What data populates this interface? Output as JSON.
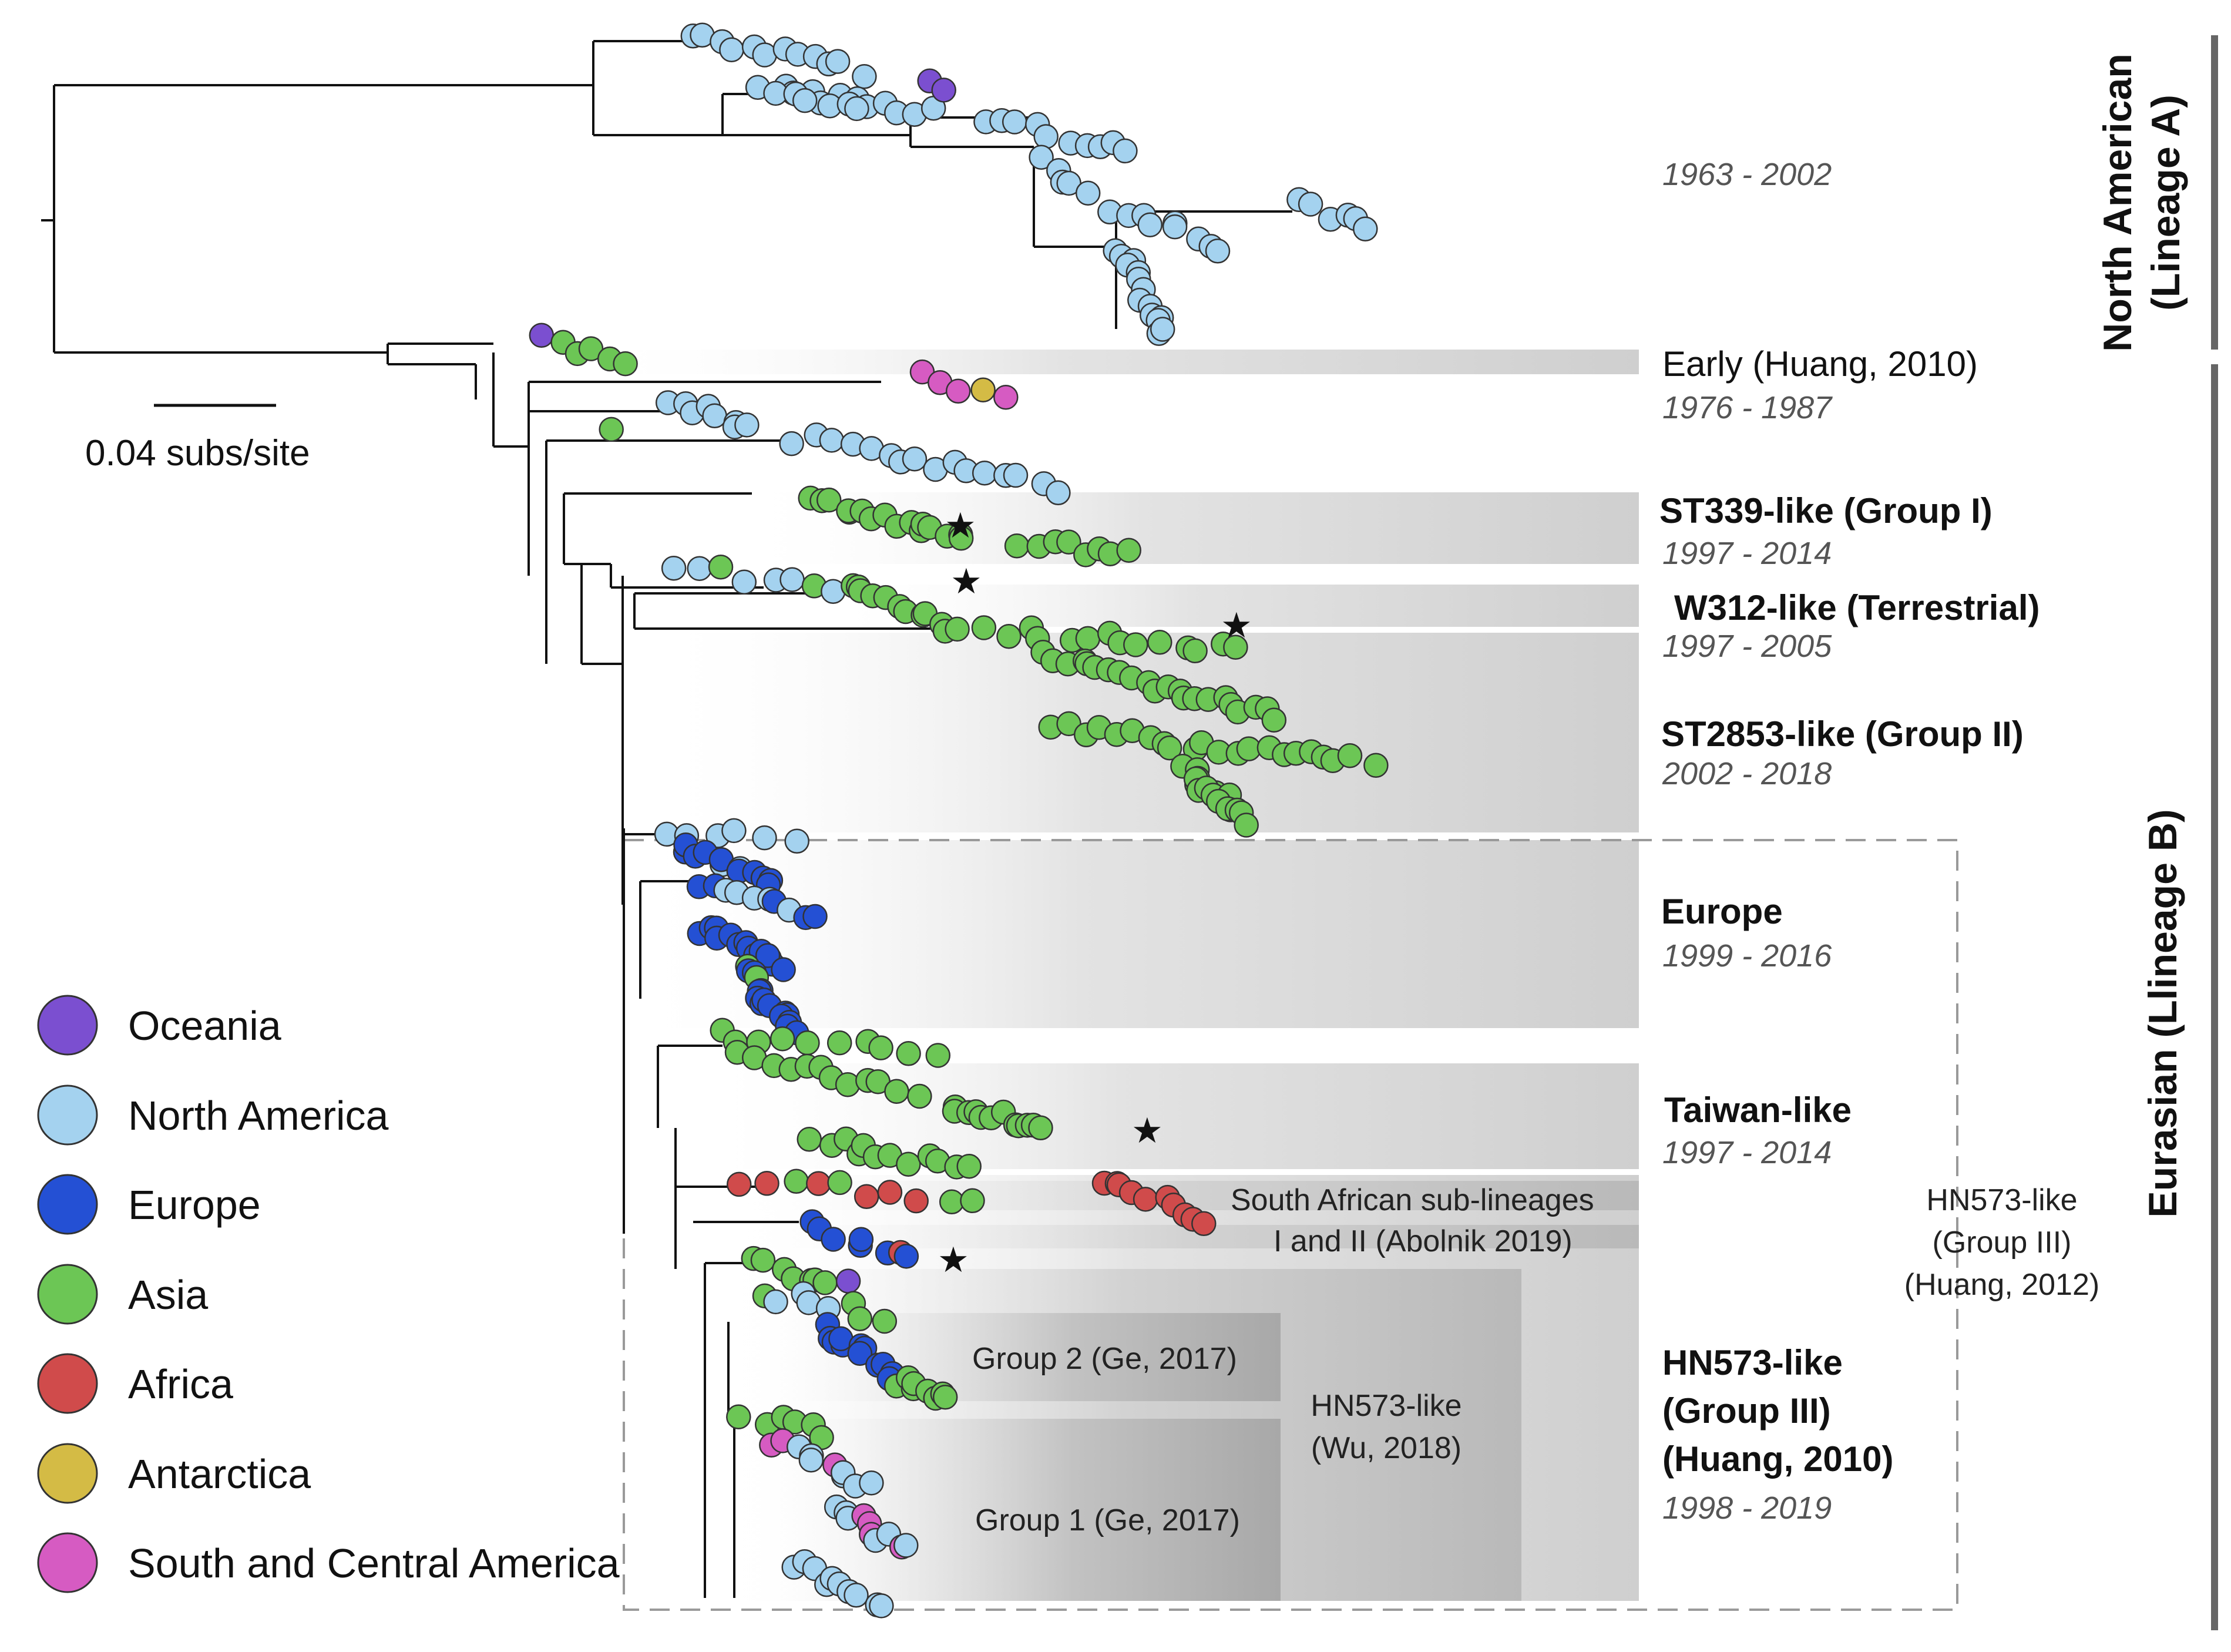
{
  "scale_bar": {
    "label": "0.04 subs/site"
  },
  "lineages": {
    "north_american_line1": "North American",
    "north_american_line2": "(Lineage A)",
    "eurasian": "Eurasian (Llineage B)"
  },
  "clades": {
    "north_american_years": "1963 - 2002",
    "early_title": "Early (Huang, 2010)",
    "early_years": "1976 - 1987",
    "st339_title": "ST339-like (Group I)",
    "st339_years": "1997 - 2014",
    "w312_title": "W312-like (Terrestrial)",
    "w312_years": "1997 - 2005",
    "st2853_title": "ST2853-like (Group II)",
    "st2853_years": "2002 - 2018",
    "europe_title": "Europe",
    "europe_years": "1999 - 2016",
    "taiwan_title": "Taiwan-like",
    "taiwan_years": "1997 - 2014",
    "south_african_line1": "South African sub-lineages",
    "south_african_line2": "I and II (Abolnik 2019)",
    "hn573_line1": "HN573-like",
    "hn573_line2": "(Group III)",
    "hn573_line3": "(Huang, 2010)",
    "hn573_years": "1998 - 2019",
    "hn573_2012_line1": "HN573-like",
    "hn573_2012_line2": "(Group III)",
    "hn573_2012_line3": "(Huang, 2012)",
    "hn573_wu_line1": "HN573-like",
    "hn573_wu_line2": "(Wu, 2018)",
    "group2": "Group 2 (Ge, 2017)",
    "group1": "Group 1 (Ge, 2017)"
  },
  "legend": [
    {
      "label": "Oceania",
      "color": "#7b4fd0"
    },
    {
      "label": "North America",
      "color": "#a4d2ef"
    },
    {
      "label": "Europe",
      "color": "#2450d4"
    },
    {
      "label": "Asia",
      "color": "#6cc655"
    },
    {
      "label": "Africa",
      "color": "#d04b4b"
    },
    {
      "label": "Antarctica",
      "color": "#d4bb45"
    },
    {
      "label": "South and Central America",
      "color": "#d65bc2"
    }
  ]
}
